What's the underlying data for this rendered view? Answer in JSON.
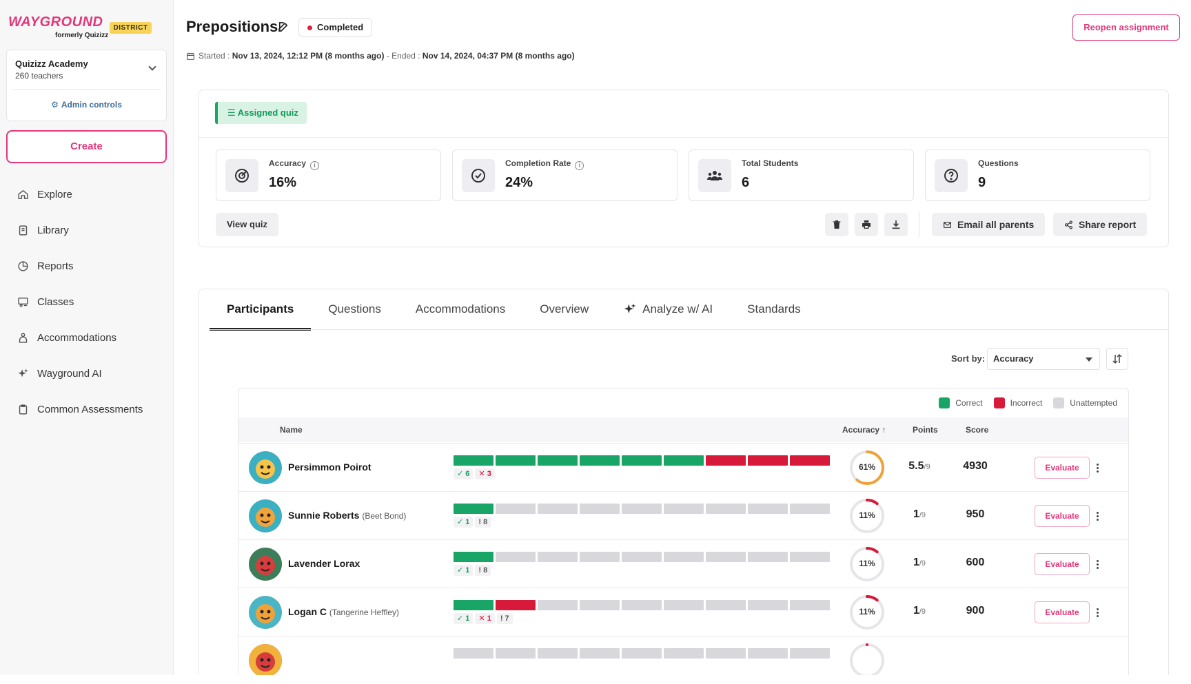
{
  "brand": {
    "name": "WAYGROUND",
    "sub": "formerly Quizizz",
    "badge": "DISTRICT"
  },
  "org": {
    "name": "Quizizz Academy",
    "teachers": "260 teachers",
    "admin": "Admin controls"
  },
  "create_label": "Create",
  "nav": [
    {
      "label": "Explore",
      "icon": "home-icon"
    },
    {
      "label": "Library",
      "icon": "library-icon"
    },
    {
      "label": "Reports",
      "icon": "reports-icon"
    },
    {
      "label": "Classes",
      "icon": "classes-icon"
    },
    {
      "label": "Accommodations",
      "icon": "accommodations-icon"
    },
    {
      "label": "Wayground AI",
      "icon": "sparkle-icon"
    },
    {
      "label": "Common Assessments",
      "icon": "clipboard-icon"
    }
  ],
  "header": {
    "title": "Prepositions",
    "status": "Completed",
    "reopen": "Reopen assignment",
    "started_label": "Started :",
    "started_value": "Nov 13, 2024, 12:12 PM (8 months ago)",
    "sep": "-",
    "ended_label": "Ended :",
    "ended_value": "Nov 14, 2024, 04:37 PM (8 months ago)"
  },
  "summary": {
    "chip": "Assigned quiz",
    "stats": [
      {
        "label": "Accuracy",
        "value": "16%"
      },
      {
        "label": "Completion Rate",
        "value": "24%"
      },
      {
        "label": "Total Students",
        "value": "6"
      },
      {
        "label": "Questions",
        "value": "9"
      }
    ],
    "view_quiz": "View quiz",
    "email_parents": "Email all parents",
    "share_report": "Share report"
  },
  "tabs": [
    "Participants",
    "Questions",
    "Accommodations",
    "Overview",
    "Analyze w/ AI",
    "Standards"
  ],
  "sort": {
    "label": "Sort by:",
    "value": "Accuracy"
  },
  "legend": {
    "correct": "Correct",
    "incorrect": "Incorrect",
    "unattempted": "Unattempted"
  },
  "colors": {
    "correct": "#18a566",
    "incorrect": "#d7193a",
    "unattempted": "#d8d8dc",
    "accent": "#e2367a"
  },
  "table": {
    "headers": {
      "name": "Name",
      "accuracy": "Accuracy",
      "points": "Points",
      "score": "Score"
    },
    "evaluate_label": "Evaluate",
    "rows": [
      {
        "name": "Persimmon Poirot",
        "alias": "",
        "answers": [
          "c",
          "c",
          "c",
          "c",
          "c",
          "c",
          "i",
          "i",
          "i"
        ],
        "correct": "6",
        "incorrect": "3",
        "unattempted": "",
        "accuracy": "61%",
        "acc": 0.61,
        "points": "5.5",
        "points_of": "/9",
        "score": "4930"
      },
      {
        "name": "Sunnie Roberts",
        "alias": "(Beet Bond)",
        "answers": [
          "c",
          "u",
          "u",
          "u",
          "u",
          "u",
          "u",
          "u",
          "u"
        ],
        "correct": "1",
        "incorrect": "",
        "unattempted": "8",
        "accuracy": "11%",
        "acc": 0.11,
        "points": "1",
        "points_of": "/9",
        "score": "950"
      },
      {
        "name": "Lavender Lorax",
        "alias": "",
        "answers": [
          "c",
          "u",
          "u",
          "u",
          "u",
          "u",
          "u",
          "u",
          "u"
        ],
        "correct": "1",
        "incorrect": "",
        "unattempted": "8",
        "accuracy": "11%",
        "acc": 0.11,
        "points": "1",
        "points_of": "/9",
        "score": "600"
      },
      {
        "name": "Logan C",
        "alias": "(Tangerine Heffley)",
        "answers": [
          "c",
          "i",
          "u",
          "u",
          "u",
          "u",
          "u",
          "u",
          "u"
        ],
        "correct": "1",
        "incorrect": "1",
        "unattempted": "7",
        "accuracy": "11%",
        "acc": 0.11,
        "points": "1",
        "points_of": "/9",
        "score": "900"
      },
      {
        "name": "",
        "alias": "",
        "answers": [
          "u",
          "u",
          "u",
          "u",
          "u",
          "u",
          "u",
          "u",
          "u"
        ],
        "correct": "",
        "incorrect": "",
        "unattempted": "",
        "accuracy": "",
        "acc": 0.0,
        "points": "",
        "points_of": "",
        "score": ""
      }
    ]
  }
}
